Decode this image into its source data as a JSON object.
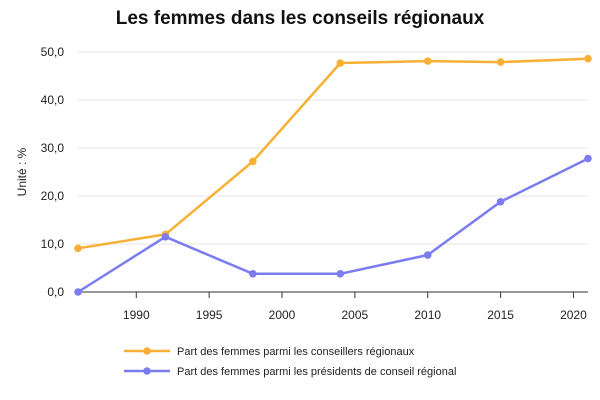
{
  "chart_data": {
    "type": "line",
    "title": "Les femmes dans les conseils régionaux",
    "xlabel": "",
    "ylabel": "Unité : %",
    "xlim": [
      1986,
      2021
    ],
    "ylim": [
      0,
      50
    ],
    "x_ticks": [
      1990,
      1995,
      2000,
      2005,
      2010,
      2015,
      2020
    ],
    "y_ticks": [
      0,
      10,
      20,
      30,
      40,
      50
    ],
    "y_tick_labels": [
      "0,0",
      "10,0",
      "20,0",
      "30,0",
      "40,0",
      "50,0"
    ],
    "grid": true,
    "legend_position": "bottom",
    "x": [
      1986,
      1992,
      1998,
      2004,
      2010,
      2015,
      2021
    ],
    "series": [
      {
        "name": "Part des femmes parmi les conseillers régionaux",
        "color": "#f7b035",
        "values": [
          9.1,
          12.0,
          27.2,
          47.7,
          48.1,
          47.9,
          48.6
        ]
      },
      {
        "name": "Part des femmes parmi les présidents de conseil régional",
        "color": "#7b7cf0",
        "values": [
          0.0,
          11.5,
          3.8,
          3.8,
          7.7,
          18.8,
          27.8
        ]
      }
    ]
  }
}
